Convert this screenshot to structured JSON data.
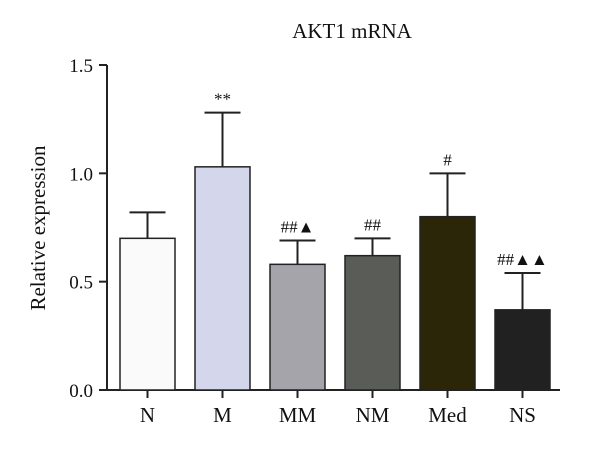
{
  "chart_data": {
    "type": "bar",
    "title": "AKT1 mRNA",
    "xlabel": "",
    "ylabel": "Relative expression",
    "ylim": [
      0,
      1.5
    ],
    "yticks": [
      "0.0",
      "0.5",
      "1.0",
      "1.5"
    ],
    "categories": [
      "N",
      "M",
      "MM",
      "NM",
      "Med",
      "NS"
    ],
    "values": [
      0.7,
      1.03,
      0.58,
      0.62,
      0.8,
      0.37
    ],
    "errors": [
      0.12,
      0.25,
      0.11,
      0.08,
      0.2,
      0.17
    ],
    "annotations": [
      "",
      "**",
      "##▲",
      "##",
      "#",
      "##▲▲"
    ],
    "colors": [
      "#fafafa",
      "#d4d6ec",
      "#a4a4aa",
      "#5a5c58",
      "#2b2608",
      "#212121"
    ],
    "grid": false,
    "legend": "none"
  }
}
